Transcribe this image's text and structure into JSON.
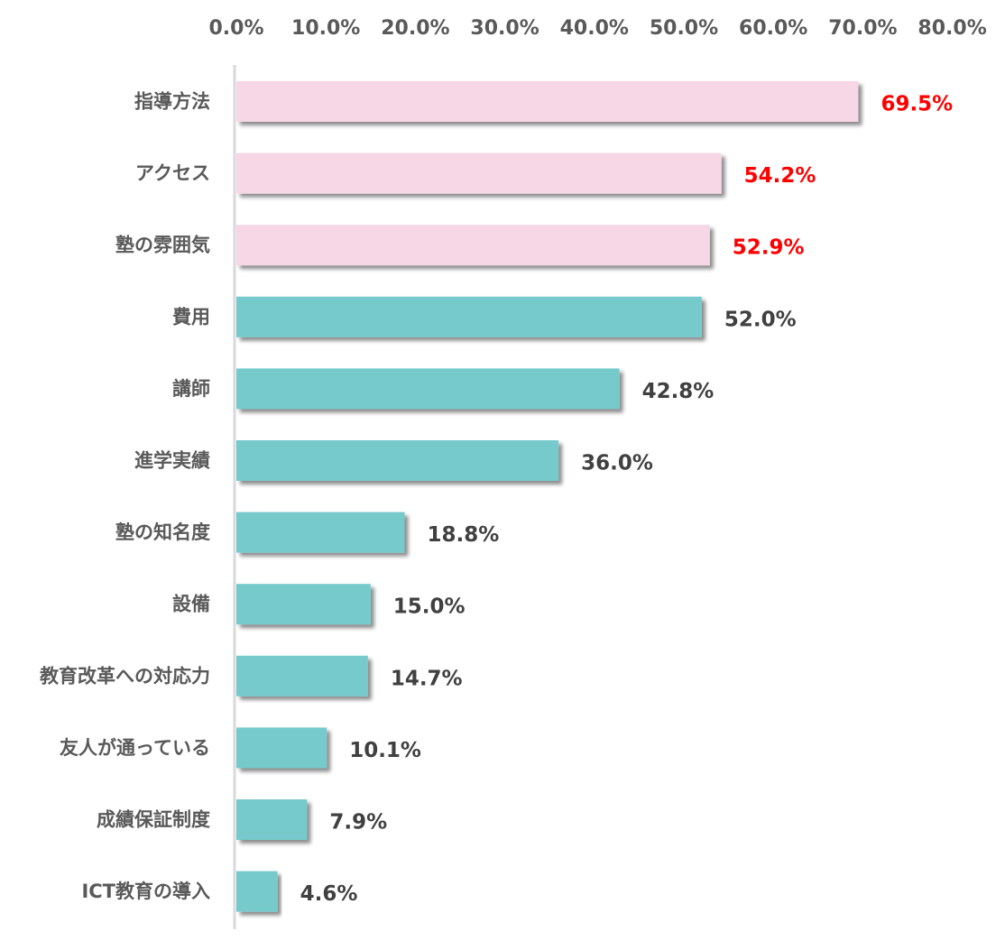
{
  "chart_data": {
    "type": "bar",
    "orientation": "horizontal",
    "title": "",
    "xlabel": "",
    "ylabel": "",
    "xlim": [
      0,
      80
    ],
    "x_ticks": [
      "0.0%",
      "10.0%",
      "20.0%",
      "30.0%",
      "40.0%",
      "50.0%",
      "60.0%",
      "70.0%",
      "80.0%"
    ],
    "x_axis_position": "top",
    "grid": false,
    "legend": "none",
    "categories": [
      "指導方法",
      "アクセス",
      "塾の雰囲気",
      "費用",
      "講師",
      "進学実績",
      "塾の知名度",
      "設備",
      "教育改革への対応力",
      "友人が通っている",
      "成績保証制度",
      "ICT教育の導入"
    ],
    "values": [
      69.5,
      54.2,
      52.9,
      52.0,
      42.8,
      36.0,
      18.8,
      15.0,
      14.7,
      10.1,
      7.9,
      4.6
    ],
    "data_labels": [
      "69.5%",
      "54.2%",
      "52.9%",
      "52.0%",
      "42.8%",
      "36.0%",
      "18.8%",
      "15.0%",
      "14.7%",
      "10.1%",
      "7.9%",
      "4.6%"
    ],
    "highlighted_count": 3,
    "colors": {
      "highlight_bar": "#F7D6E6",
      "normal_bar": "#76CACB",
      "highlight_label": "#FF0000",
      "normal_label": "#404040",
      "category_label": "#595959",
      "axis_line": "#D9D9D9"
    }
  }
}
